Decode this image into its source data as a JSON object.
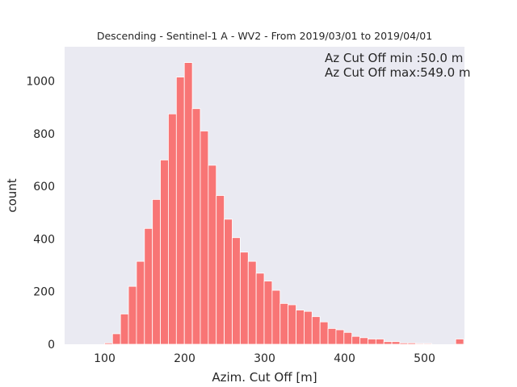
{
  "chart_data": {
    "type": "bar",
    "title": "Descending - Sentinel-1 A - WV2 - From 2019/03/01 to 2019/04/01",
    "xlabel": "Azim. Cut Off [m]",
    "ylabel": "count",
    "xlim": [
      50,
      550
    ],
    "ylim": [
      0,
      1130
    ],
    "grid": false,
    "bar_color": "#f87575",
    "bar_edge_color": "#ffffff",
    "plot_background": "#eaeaf2",
    "bin_edges": [
      50,
      59.98,
      69.96,
      79.94,
      89.92,
      99.9,
      109.88,
      119.86,
      129.84,
      139.82,
      149.8,
      159.78,
      169.76,
      179.74,
      189.72,
      199.7,
      209.68,
      219.66,
      229.64,
      239.62,
      249.6,
      259.58,
      269.56,
      279.54,
      289.52,
      299.5,
      309.48,
      319.46,
      329.44,
      339.42,
      349.4,
      359.38,
      369.36,
      379.34,
      389.32,
      399.3,
      409.28,
      419.26,
      429.24,
      439.22,
      449.2,
      459.18,
      469.16,
      479.14,
      489.12,
      499.1,
      509.08,
      519.06,
      529.04,
      539.02,
      549
    ],
    "values": [
      0,
      0,
      0,
      0,
      0,
      5,
      40,
      115,
      220,
      315,
      440,
      550,
      700,
      875,
      1015,
      1070,
      895,
      810,
      680,
      565,
      475,
      405,
      350,
      315,
      270,
      240,
      205,
      155,
      150,
      130,
      125,
      105,
      85,
      60,
      55,
      45,
      30,
      25,
      20,
      20,
      10,
      10,
      5,
      5,
      3,
      3,
      0,
      0,
      0,
      20
    ],
    "x_ticks": [
      100,
      200,
      300,
      400,
      500
    ],
    "x_tick_labels": [
      "100",
      "200",
      "300",
      "400",
      "500"
    ],
    "y_ticks": [
      0,
      200,
      400,
      600,
      800,
      1000
    ],
    "y_tick_labels": [
      "0",
      "200",
      "400",
      "600",
      "800",
      "1000"
    ],
    "annotations": [
      "Az Cut Off min :50.0 m",
      "Az Cut Off max:549.0 m"
    ]
  }
}
